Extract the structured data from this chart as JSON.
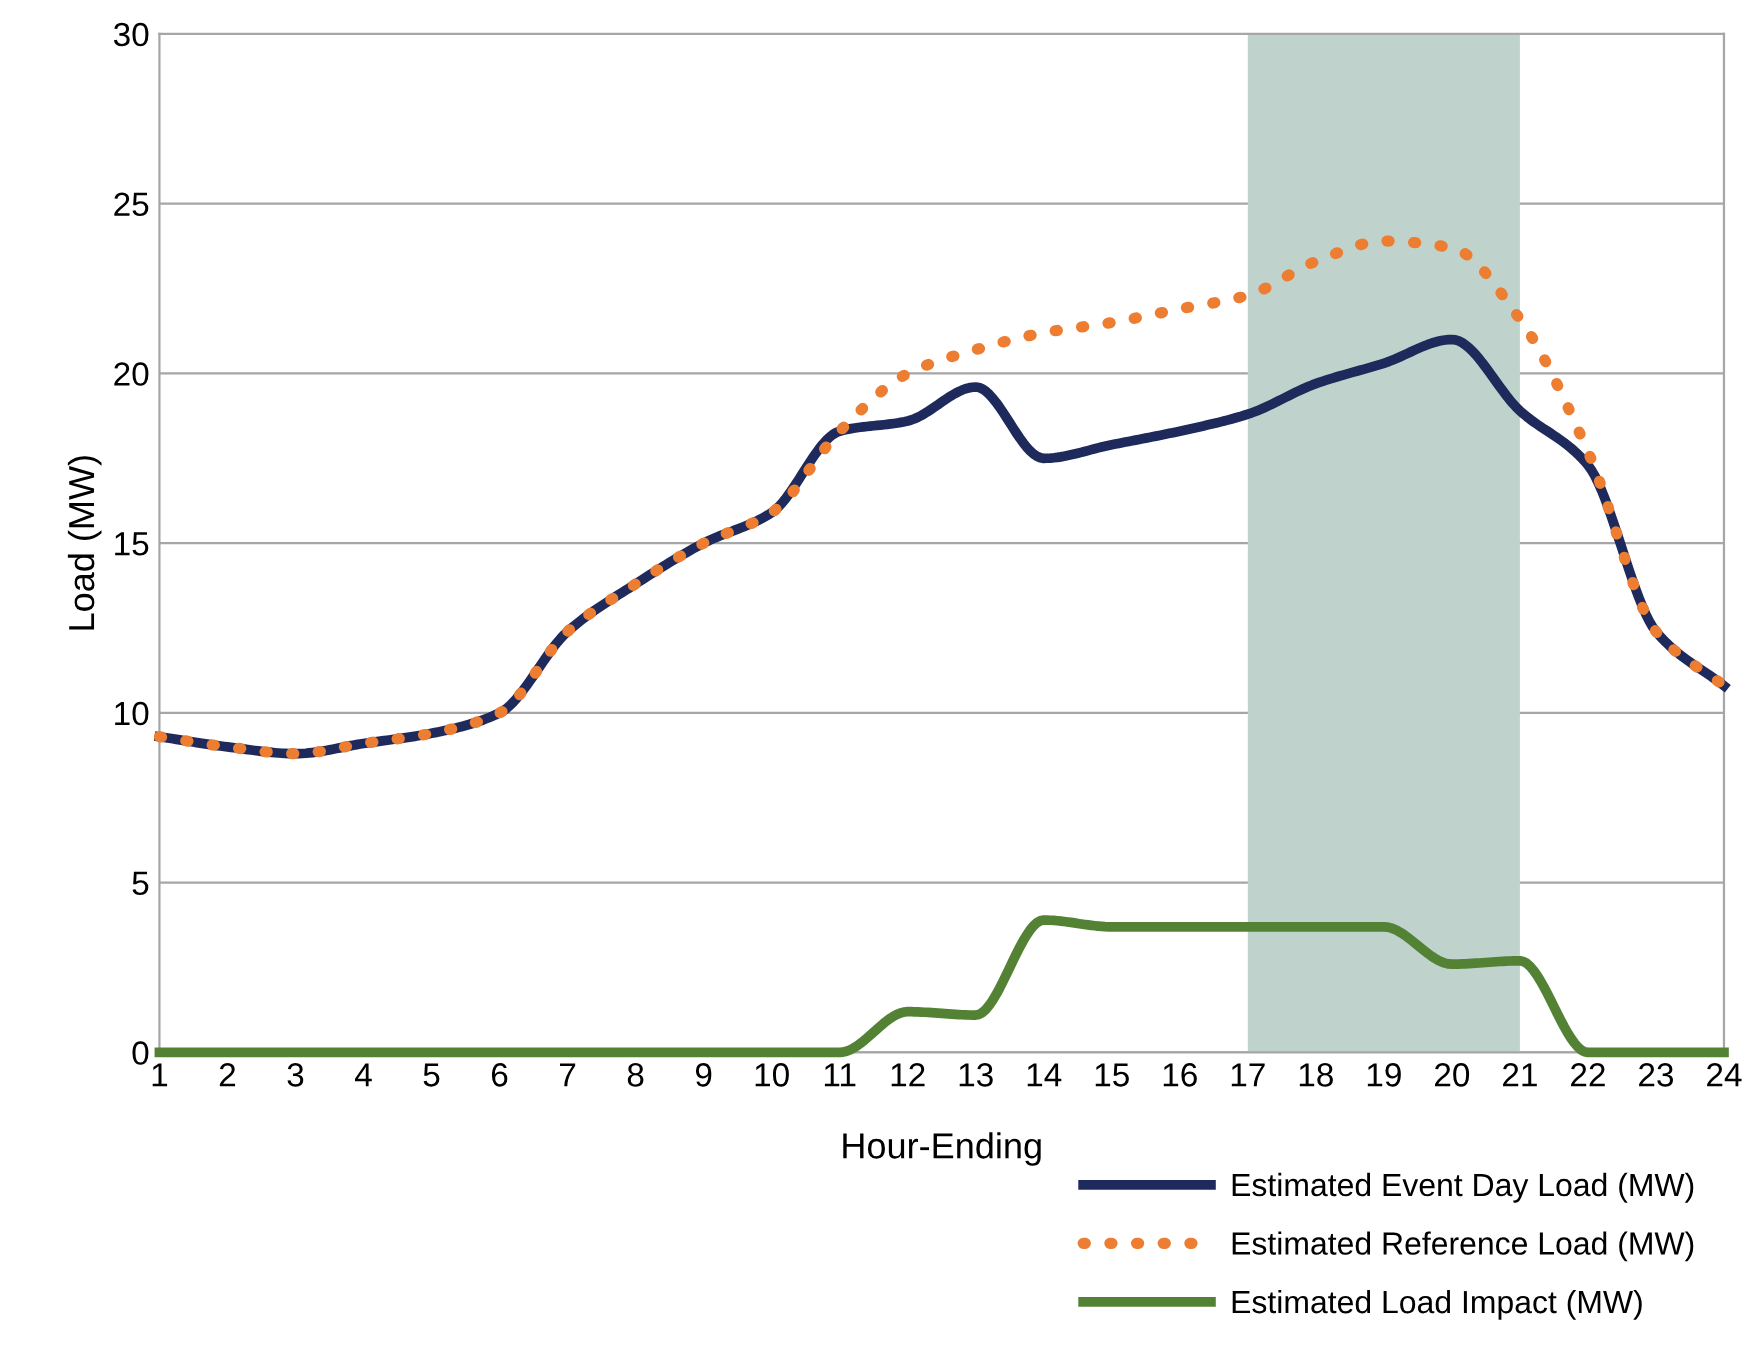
{
  "chart_data": {
    "type": "line",
    "xlabel": "Hour-Ending",
    "ylabel": "Load (MW)",
    "x": [
      1,
      2,
      3,
      4,
      5,
      6,
      7,
      8,
      9,
      10,
      11,
      12,
      13,
      14,
      15,
      16,
      17,
      18,
      19,
      20,
      21,
      22,
      23,
      24
    ],
    "xlim": [
      1,
      24
    ],
    "xticks": [
      1,
      2,
      3,
      4,
      5,
      6,
      7,
      8,
      9,
      10,
      11,
      12,
      13,
      14,
      15,
      16,
      17,
      18,
      19,
      20,
      21,
      22,
      23,
      24
    ],
    "ylim": [
      0,
      30
    ],
    "yticks": [
      0,
      5,
      10,
      15,
      20,
      25,
      30
    ],
    "grid": "y",
    "legend": "bottom right",
    "bands": [
      {
        "axis": "x",
        "from": 17,
        "to": 21,
        "color": "#bfd3cc"
      }
    ],
    "series": [
      {
        "name": "Estimated Event Day Load (MW)",
        "color": "#1f2a5c",
        "line_style": "solid",
        "values": [
          9.3,
          9.0,
          8.8,
          9.1,
          9.4,
          10.0,
          12.4,
          13.8,
          15.0,
          15.9,
          18.3,
          18.6,
          19.6,
          17.5,
          17.9,
          18.3,
          18.8,
          19.7,
          20.3,
          21.0,
          18.9,
          17.3,
          12.4,
          10.8
        ]
      },
      {
        "name": "Estimated Reference Load (MW)",
        "color": "#ed7d31",
        "line_style": "dotted",
        "values": [
          9.3,
          9.0,
          8.8,
          9.1,
          9.4,
          10.0,
          12.4,
          13.8,
          15.0,
          15.9,
          18.3,
          20.0,
          20.7,
          21.2,
          21.5,
          21.9,
          22.3,
          23.3,
          23.9,
          23.7,
          21.6,
          17.7,
          12.4,
          10.8
        ]
      },
      {
        "name": "Estimated Load Impact (MW)",
        "color": "#548235",
        "line_style": "solid",
        "values": [
          0,
          0,
          0,
          0,
          0,
          0,
          0,
          0,
          0,
          0,
          0,
          1.2,
          1.1,
          3.9,
          3.7,
          3.7,
          3.7,
          3.7,
          3.7,
          2.6,
          2.7,
          0,
          0,
          0
        ]
      }
    ]
  }
}
